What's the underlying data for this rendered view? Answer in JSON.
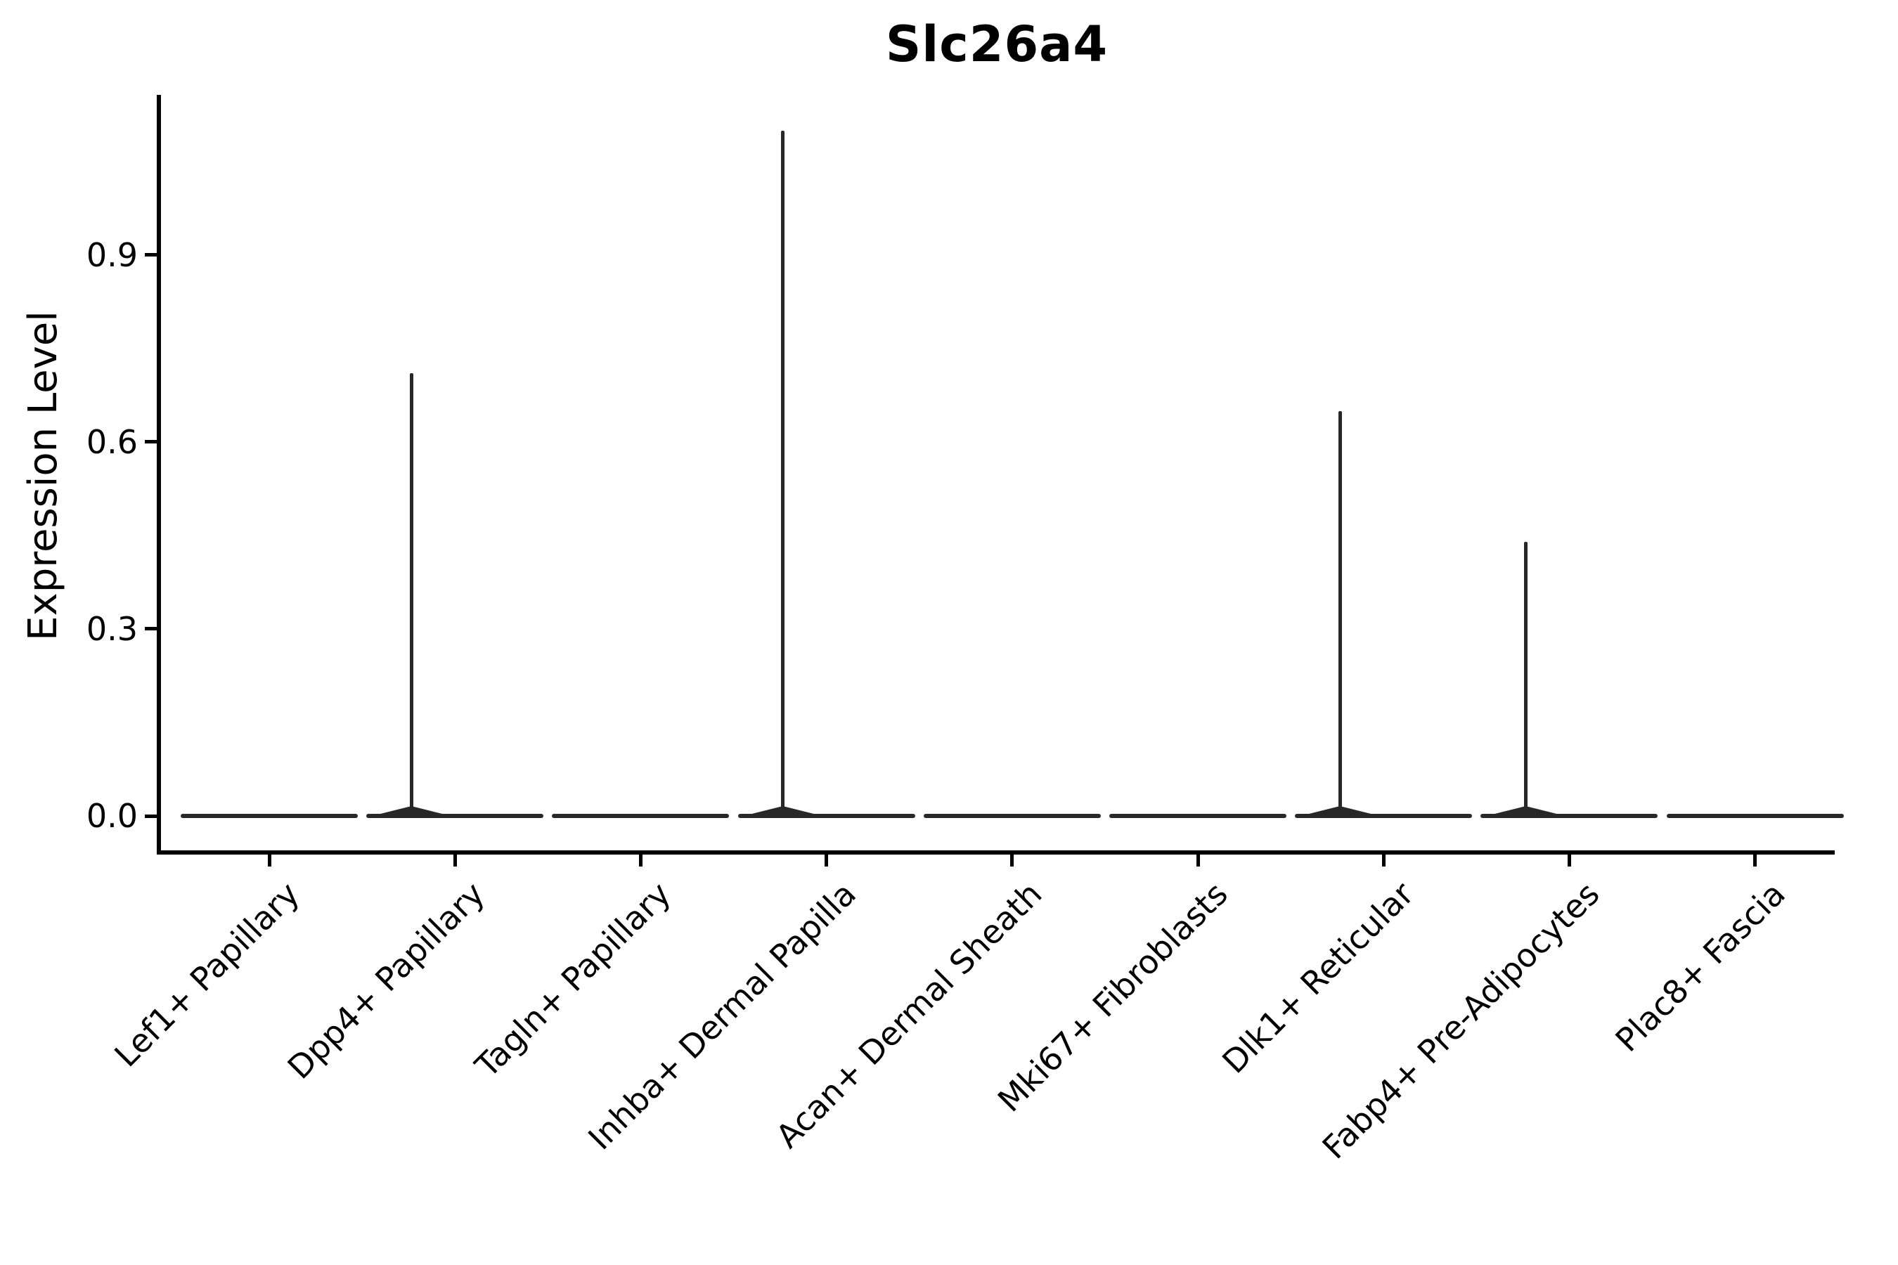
{
  "figure": {
    "title": "Slc26a4",
    "y_axis": {
      "label": "Expression Level",
      "tick_labels": [
        "0.0",
        "0.3",
        "0.6",
        "0.9"
      ]
    },
    "x_axis": {
      "categories": [
        "Lef1+ Papillary",
        "Dpp4+ Papillary",
        "Tagln+ Papillary",
        "Inhba+ Dermal Papilla",
        "Acan+ Dermal Sheath",
        "Mki67+ Fibroblasts",
        "Dlk1+ Reticular",
        "Fabp4+ Pre-Adipocytes",
        "Plac8+ Fascia"
      ]
    }
  },
  "chart_data": {
    "type": "violin",
    "title": "Slc26a4",
    "xlabel": "",
    "ylabel": "Expression Level",
    "yticks": [
      0.0,
      0.3,
      0.6,
      0.9
    ],
    "ylim": [
      -0.055,
      1.16
    ],
    "grid": false,
    "legend": null,
    "line_color": "#282828",
    "categories": [
      "Lef1+ Papillary",
      "Dpp4+ Papillary",
      "Tagln+ Papillary",
      "Inhba+ Dermal Papilla",
      "Acan+ Dermal Sheath",
      "Mki67+ Fibroblasts",
      "Dlk1+ Reticular",
      "Fabp4+ Pre-Adipocytes",
      "Plac8+ Fascia"
    ],
    "violins": [
      {
        "category": "Lef1+ Papillary",
        "baseline_value": 0.0,
        "spike_max": 0.0
      },
      {
        "category": "Dpp4+ Papillary",
        "baseline_value": 0.0,
        "spike_max": 0.71
      },
      {
        "category": "Tagln+ Papillary",
        "baseline_value": 0.0,
        "spike_max": 0.0
      },
      {
        "category": "Inhba+ Dermal Papilla",
        "baseline_value": 0.0,
        "spike_max": 1.1
      },
      {
        "category": "Acan+ Dermal Sheath",
        "baseline_value": 0.0,
        "spike_max": 0.0
      },
      {
        "category": "Mki67+ Fibroblasts",
        "baseline_value": 0.0,
        "spike_max": 0.0
      },
      {
        "category": "Dlk1+ Reticular",
        "baseline_value": 0.0,
        "spike_max": 0.65
      },
      {
        "category": "Fabp4+ Pre-Adipocytes",
        "baseline_value": 0.0,
        "spike_max": 0.44
      },
      {
        "category": "Plac8+ Fascia",
        "baseline_value": 0.0,
        "spike_max": 0.0
      }
    ]
  }
}
